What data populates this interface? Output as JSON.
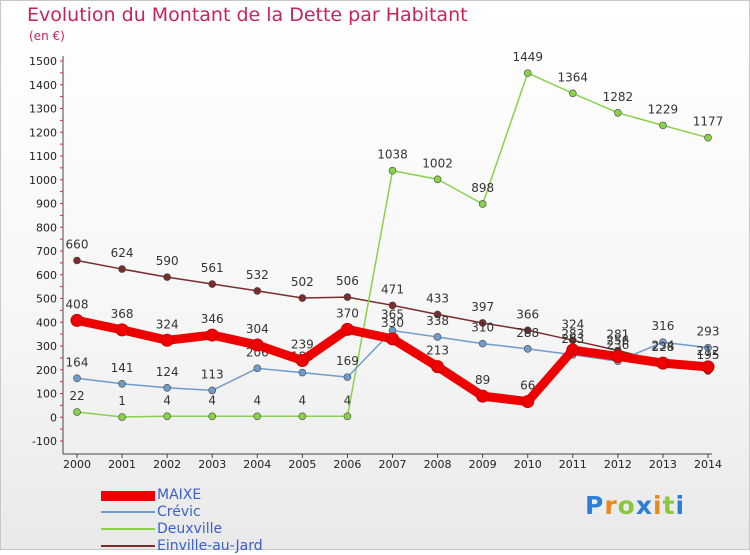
{
  "header": {
    "title": "Evolution du Montant de la Dette par Habitant",
    "subtitle": "(en €)"
  },
  "chart_data": {
    "type": "line",
    "title": "Evolution du Montant de la Dette par Habitant",
    "subtitle": "(en €)",
    "xlabel": "",
    "ylabel": "",
    "ylim": [
      -100,
      1500
    ],
    "yticks": [
      -100,
      0,
      100,
      200,
      300,
      400,
      500,
      600,
      700,
      800,
      900,
      1000,
      1100,
      1200,
      1300,
      1400,
      1500
    ],
    "x": [
      "2000",
      "2001",
      "2002",
      "2003",
      "2004",
      "2005",
      "2006",
      "2007",
      "2008",
      "2009",
      "2010",
      "2011",
      "2012",
      "2013",
      "2014"
    ],
    "grid": false,
    "legend_position": "bottom-left",
    "series": [
      {
        "name": "Einville-au-Jard",
        "color": "#7b2d2d",
        "values": [
          660,
          624,
          590,
          561,
          532,
          502,
          506,
          471,
          433,
          397,
          366,
          324,
          281,
          234,
          195
        ]
      },
      {
        "name": "Deuxville",
        "color": "#8ad14b",
        "values": [
          22,
          1,
          4,
          4,
          4,
          4,
          4,
          1038,
          1002,
          898,
          1449,
          1364,
          1282,
          1229,
          1177
        ]
      },
      {
        "name": "Crévic",
        "color": "#6f9ccc",
        "values": [
          164,
          141,
          124,
          113,
          206,
          188,
          169,
          365,
          338,
          310,
          288,
          263,
          236,
          316,
          293
        ]
      },
      {
        "name": "MAIXE",
        "color": "#ee0000",
        "values": [
          408,
          368,
          324,
          346,
          304,
          239,
          370,
          330,
          213,
          89,
          66,
          283,
          256,
          228,
          212
        ]
      }
    ]
  },
  "legend": [
    {
      "label": "MAIXE",
      "color": "#ee0000",
      "thick": true
    },
    {
      "label": "Crévic",
      "color": "#6f9ccc",
      "thick": false
    },
    {
      "label": "Deuxville",
      "color": "#8ad14b",
      "thick": false
    },
    {
      "label": "Einville-au-Jard",
      "color": "#7b2d2d",
      "thick": false
    }
  ],
  "logo": {
    "letters": [
      "P",
      "r",
      "o",
      "x",
      "i",
      "t",
      "i"
    ],
    "colors": [
      "#2b7fd6",
      "#e8891b",
      "#8cc63f",
      "#2b7fd6",
      "#e8891b",
      "#8cc63f",
      "#2b7fd6"
    ]
  }
}
